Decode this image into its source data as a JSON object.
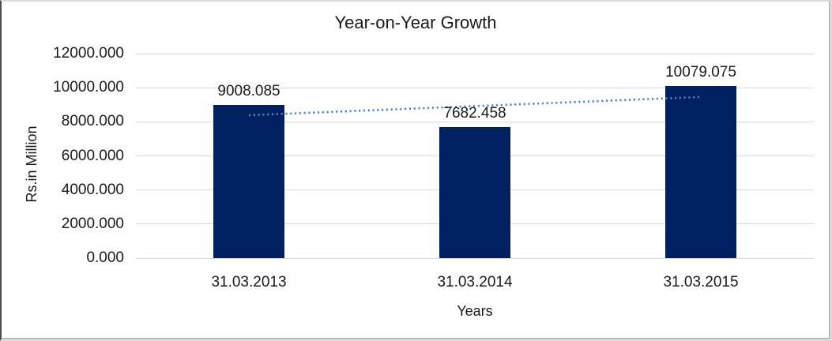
{
  "chart_data": {
    "type": "bar",
    "title": "Year-on-Year Growth",
    "xlabel": "Years",
    "ylabel": "Rs.in Million",
    "categories": [
      "31.03.2013",
      "31.03.2014",
      "31.03.2015"
    ],
    "values": [
      9008.085,
      7682.458,
      10079.075
    ],
    "data_labels": [
      "9008.085",
      "7682.458",
      "10079.075"
    ],
    "y_tick_labels_top_to_bottom": [
      "12000.000",
      "10000.000",
      "8000.000",
      "6000.000",
      "4000.000",
      "2000.000",
      "0.000"
    ],
    "ylim": [
      0,
      12000
    ],
    "y_tick_step": 2000,
    "grid": true,
    "legend": "none",
    "trendline": {
      "type": "linear",
      "style": "dotted"
    },
    "colors": {
      "bar": "#002060",
      "trendline": "#4a86c8",
      "gridline": "#d9d9d9",
      "text": "#1a1a1a",
      "background": "#ffffff"
    }
  }
}
